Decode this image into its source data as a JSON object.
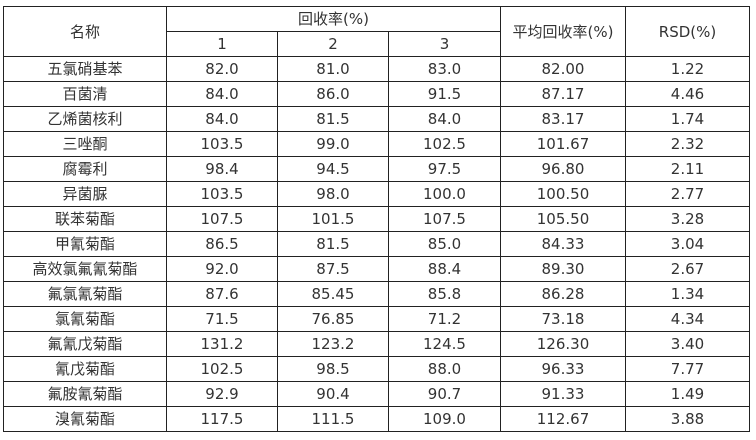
{
  "header": {
    "name": "名称",
    "recovery": "回收率(%)",
    "reps": [
      "1",
      "2",
      "3"
    ],
    "mean": "平均回收率(%)",
    "rsd": "RSD(%)"
  },
  "rows": [
    {
      "name": "五氯硝基苯",
      "r1": "82.0",
      "r2": "81.0",
      "r3": "83.0",
      "mean": "82.00",
      "rsd": "1.22"
    },
    {
      "name": "百菌清",
      "r1": "84.0",
      "r2": "86.0",
      "r3": "91.5",
      "mean": "87.17",
      "rsd": "4.46"
    },
    {
      "name": "乙烯菌核利",
      "r1": "84.0",
      "r2": "81.5",
      "r3": "84.0",
      "mean": "83.17",
      "rsd": "1.74"
    },
    {
      "name": "三唑酮",
      "r1": "103.5",
      "r2": "99.0",
      "r3": "102.5",
      "mean": "101.67",
      "rsd": "2.32"
    },
    {
      "name": "腐霉利",
      "r1": "98.4",
      "r2": "94.5",
      "r3": "97.5",
      "mean": "96.80",
      "rsd": "2.11"
    },
    {
      "name": "异菌脲",
      "r1": "103.5",
      "r2": "98.0",
      "r3": "100.0",
      "mean": "100.50",
      "rsd": "2.77"
    },
    {
      "name": "联苯菊酯",
      "r1": "107.5",
      "r2": "101.5",
      "r3": "107.5",
      "mean": "105.50",
      "rsd": "3.28"
    },
    {
      "name": "甲氰菊酯",
      "r1": "86.5",
      "r2": "81.5",
      "r3": "85.0",
      "mean": "84.33",
      "rsd": "3.04"
    },
    {
      "name": "高效氯氟氰菊酯",
      "r1": "92.0",
      "r2": "87.5",
      "r3": "88.4",
      "mean": "89.30",
      "rsd": "2.67"
    },
    {
      "name": "氟氯氰菊酯",
      "r1": "87.6",
      "r2": "85.45",
      "r3": "85.8",
      "mean": "86.28",
      "rsd": "1.34"
    },
    {
      "name": "氯氰菊酯",
      "r1": "71.5",
      "r2": "76.85",
      "r3": "71.2",
      "mean": "73.18",
      "rsd": "4.34"
    },
    {
      "name": "氟氰戊菊酯",
      "r1": "131.2",
      "r2": "123.2",
      "r3": "124.5",
      "mean": "126.30",
      "rsd": "3.40"
    },
    {
      "name": "氰戊菊酯",
      "r1": "102.5",
      "r2": "98.5",
      "r3": "88.0",
      "mean": "96.33",
      "rsd": "7.77"
    },
    {
      "name": "氟胺氰菊酯",
      "r1": "92.9",
      "r2": "90.4",
      "r3": "90.7",
      "mean": "91.33",
      "rsd": "1.49"
    },
    {
      "name": "溴氰菊酯",
      "r1": "117.5",
      "r2": "111.5",
      "r3": "109.0",
      "mean": "112.67",
      "rsd": "3.88"
    }
  ]
}
